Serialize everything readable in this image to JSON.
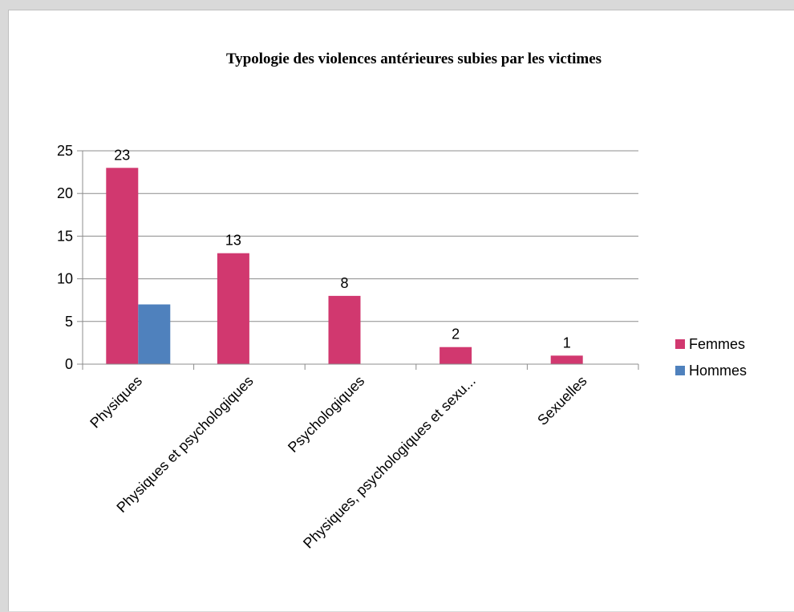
{
  "chart_data": {
    "type": "bar",
    "title": "Typologie des violences antérieures subies par les victimes",
    "xlabel": "",
    "ylabel": "",
    "categories": [
      "Physiques",
      "Physiques et psychologiques",
      "Psychologiques",
      "Physiques, psychologiques et sexu...",
      "Sexuelles"
    ],
    "series": [
      {
        "name": "Femmes",
        "values": [
          23,
          13,
          8,
          2,
          1
        ],
        "color": "#d1386f",
        "data_labels": [
          "23",
          "13",
          "8",
          "2",
          "1"
        ]
      },
      {
        "name": "Hommes",
        "values": [
          7,
          null,
          null,
          null,
          null
        ],
        "color": "#4f81bd",
        "data_labels": [
          "",
          "",
          "",
          "",
          ""
        ]
      }
    ],
    "ylim": [
      0,
      25
    ],
    "yticks": [
      0,
      5,
      10,
      15,
      20,
      25
    ],
    "ytick_labels": [
      "0",
      "5",
      "10",
      "15",
      "20",
      "25"
    ],
    "grid": true,
    "legend_position": "right"
  }
}
